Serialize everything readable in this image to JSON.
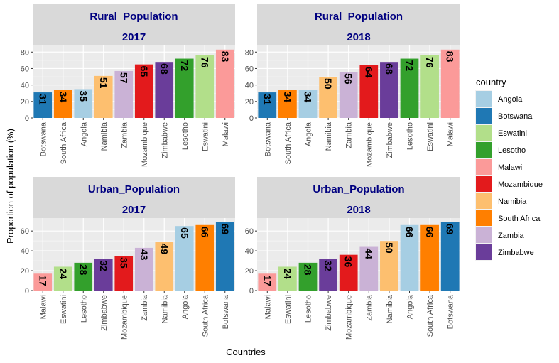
{
  "chart_data": {
    "type": "bar",
    "ylabel": "Proportion of population (%)",
    "xlabel": "Countries",
    "legend": {
      "title": "country",
      "position": "right",
      "items": [
        {
          "name": "Angola",
          "color": "#A6CEE3"
        },
        {
          "name": "Botswana",
          "color": "#1F78B4"
        },
        {
          "name": "Eswatini",
          "color": "#B2DF8A"
        },
        {
          "name": "Lesotho",
          "color": "#33A02C"
        },
        {
          "name": "Malawi",
          "color": "#FB9A99"
        },
        {
          "name": "Mozambique",
          "color": "#E31A1C"
        },
        {
          "name": "Namibia",
          "color": "#FDBF6F"
        },
        {
          "name": "South Africa",
          "color": "#FF7F00"
        },
        {
          "name": "Zambia",
          "color": "#CAB2D6"
        },
        {
          "name": "Zimbabwe",
          "color": "#6A3D9A"
        }
      ]
    },
    "panels": [
      {
        "strip_line1": "Rural_Population",
        "strip_line2": "2017",
        "ylim": [
          0,
          88
        ],
        "yticks": [
          0,
          20,
          40,
          60,
          80
        ],
        "categories": [
          "Botswana",
          "South Africa",
          "Angola",
          "Namibia",
          "Zambia",
          "Mozambique",
          "Zimbabwe",
          "Lesotho",
          "Eswatini",
          "Malawi"
        ],
        "values": [
          31,
          34,
          35,
          51,
          57,
          65,
          68,
          72,
          76,
          83
        ]
      },
      {
        "strip_line1": "Rural_Population",
        "strip_line2": "2018",
        "ylim": [
          0,
          88
        ],
        "yticks": [
          0,
          20,
          40,
          60,
          80
        ],
        "categories": [
          "Botswana",
          "South Africa",
          "Angola",
          "Namibia",
          "Zambia",
          "Mozambique",
          "Zimbabwe",
          "Lesotho",
          "Eswatini",
          "Malawi"
        ],
        "values": [
          31,
          34,
          34,
          50,
          56,
          64,
          68,
          72,
          76,
          83
        ]
      },
      {
        "strip_line1": "Urban_Population",
        "strip_line2": "2017",
        "ylim": [
          0,
          73
        ],
        "yticks": [
          0,
          20,
          40,
          60
        ],
        "categories": [
          "Malawi",
          "Eswatini",
          "Lesotho",
          "Zimbabwe",
          "Mozambique",
          "Zambia",
          "Namibia",
          "Angola",
          "South Africa",
          "Botswana"
        ],
        "values": [
          17,
          24,
          28,
          32,
          35,
          43,
          49,
          65,
          66,
          69
        ]
      },
      {
        "strip_line1": "Urban_Population",
        "strip_line2": "2018",
        "ylim": [
          0,
          73
        ],
        "yticks": [
          0,
          20,
          40,
          60
        ],
        "categories": [
          "Malawi",
          "Eswatini",
          "Lesotho",
          "Zimbabwe",
          "Mozambique",
          "Zambia",
          "Namibia",
          "Angola",
          "South Africa",
          "Botswana"
        ],
        "values": [
          17,
          24,
          28,
          32,
          36,
          44,
          50,
          66,
          66,
          69
        ]
      }
    ]
  }
}
